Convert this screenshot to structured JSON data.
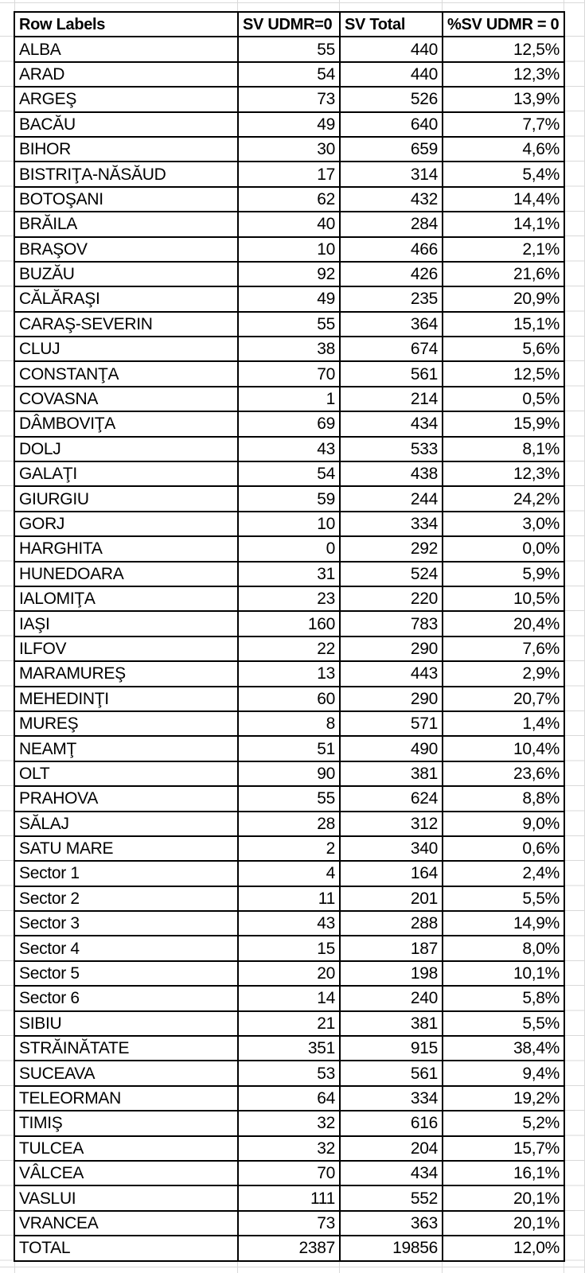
{
  "colors": {
    "background": "#ffffff",
    "table_border": "#000000",
    "sheet_gridline": "#d9d9d9",
    "text": "#000000"
  },
  "table": {
    "columns": [
      "Row Labels",
      "SV UDMR=0",
      "SV Total",
      "%SV UDMR = 0"
    ],
    "rows": [
      {
        "label": "ALBA",
        "sv_udmr_0": "55",
        "sv_total": "440",
        "pct_sv_udmr_0": "12,5%"
      },
      {
        "label": "ARAD",
        "sv_udmr_0": "54",
        "sv_total": "440",
        "pct_sv_udmr_0": "12,3%"
      },
      {
        "label": "ARGEŞ",
        "sv_udmr_0": "73",
        "sv_total": "526",
        "pct_sv_udmr_0": "13,9%"
      },
      {
        "label": "BACĂU",
        "sv_udmr_0": "49",
        "sv_total": "640",
        "pct_sv_udmr_0": "7,7%"
      },
      {
        "label": "BIHOR",
        "sv_udmr_0": "30",
        "sv_total": "659",
        "pct_sv_udmr_0": "4,6%"
      },
      {
        "label": "BISTRIŢA-NĂSĂUD",
        "sv_udmr_0": "17",
        "sv_total": "314",
        "pct_sv_udmr_0": "5,4%"
      },
      {
        "label": "BOTOŞANI",
        "sv_udmr_0": "62",
        "sv_total": "432",
        "pct_sv_udmr_0": "14,4%"
      },
      {
        "label": "BRĂILA",
        "sv_udmr_0": "40",
        "sv_total": "284",
        "pct_sv_udmr_0": "14,1%"
      },
      {
        "label": "BRAŞOV",
        "sv_udmr_0": "10",
        "sv_total": "466",
        "pct_sv_udmr_0": "2,1%"
      },
      {
        "label": "BUZĂU",
        "sv_udmr_0": "92",
        "sv_total": "426",
        "pct_sv_udmr_0": "21,6%"
      },
      {
        "label": "CĂLĂRAŞI",
        "sv_udmr_0": "49",
        "sv_total": "235",
        "pct_sv_udmr_0": "20,9%"
      },
      {
        "label": "CARAŞ-SEVERIN",
        "sv_udmr_0": "55",
        "sv_total": "364",
        "pct_sv_udmr_0": "15,1%"
      },
      {
        "label": "CLUJ",
        "sv_udmr_0": "38",
        "sv_total": "674",
        "pct_sv_udmr_0": "5,6%"
      },
      {
        "label": "CONSTANŢA",
        "sv_udmr_0": "70",
        "sv_total": "561",
        "pct_sv_udmr_0": "12,5%"
      },
      {
        "label": "COVASNA",
        "sv_udmr_0": "1",
        "sv_total": "214",
        "pct_sv_udmr_0": "0,5%"
      },
      {
        "label": "DÂMBOVIŢA",
        "sv_udmr_0": "69",
        "sv_total": "434",
        "pct_sv_udmr_0": "15,9%"
      },
      {
        "label": "DOLJ",
        "sv_udmr_0": "43",
        "sv_total": "533",
        "pct_sv_udmr_0": "8,1%"
      },
      {
        "label": "GALAŢI",
        "sv_udmr_0": "54",
        "sv_total": "438",
        "pct_sv_udmr_0": "12,3%"
      },
      {
        "label": "GIURGIU",
        "sv_udmr_0": "59",
        "sv_total": "244",
        "pct_sv_udmr_0": "24,2%"
      },
      {
        "label": "GORJ",
        "sv_udmr_0": "10",
        "sv_total": "334",
        "pct_sv_udmr_0": "3,0%"
      },
      {
        "label": "HARGHITA",
        "sv_udmr_0": "0",
        "sv_total": "292",
        "pct_sv_udmr_0": "0,0%"
      },
      {
        "label": "HUNEDOARA",
        "sv_udmr_0": "31",
        "sv_total": "524",
        "pct_sv_udmr_0": "5,9%"
      },
      {
        "label": "IALOMIŢA",
        "sv_udmr_0": "23",
        "sv_total": "220",
        "pct_sv_udmr_0": "10,5%"
      },
      {
        "label": "IAŞI",
        "sv_udmr_0": "160",
        "sv_total": "783",
        "pct_sv_udmr_0": "20,4%"
      },
      {
        "label": "ILFOV",
        "sv_udmr_0": "22",
        "sv_total": "290",
        "pct_sv_udmr_0": "7,6%"
      },
      {
        "label": "MARAMUREŞ",
        "sv_udmr_0": "13",
        "sv_total": "443",
        "pct_sv_udmr_0": "2,9%"
      },
      {
        "label": "MEHEDINŢI",
        "sv_udmr_0": "60",
        "sv_total": "290",
        "pct_sv_udmr_0": "20,7%"
      },
      {
        "label": "MUREŞ",
        "sv_udmr_0": "8",
        "sv_total": "571",
        "pct_sv_udmr_0": "1,4%"
      },
      {
        "label": "NEAMŢ",
        "sv_udmr_0": "51",
        "sv_total": "490",
        "pct_sv_udmr_0": "10,4%"
      },
      {
        "label": "OLT",
        "sv_udmr_0": "90",
        "sv_total": "381",
        "pct_sv_udmr_0": "23,6%"
      },
      {
        "label": "PRAHOVA",
        "sv_udmr_0": "55",
        "sv_total": "624",
        "pct_sv_udmr_0": "8,8%"
      },
      {
        "label": "SĂLAJ",
        "sv_udmr_0": "28",
        "sv_total": "312",
        "pct_sv_udmr_0": "9,0%"
      },
      {
        "label": "SATU MARE",
        "sv_udmr_0": "2",
        "sv_total": "340",
        "pct_sv_udmr_0": "0,6%"
      },
      {
        "label": "Sector 1",
        "sv_udmr_0": "4",
        "sv_total": "164",
        "pct_sv_udmr_0": "2,4%"
      },
      {
        "label": "Sector 2",
        "sv_udmr_0": "11",
        "sv_total": "201",
        "pct_sv_udmr_0": "5,5%"
      },
      {
        "label": "Sector 3",
        "sv_udmr_0": "43",
        "sv_total": "288",
        "pct_sv_udmr_0": "14,9%"
      },
      {
        "label": "Sector 4",
        "sv_udmr_0": "15",
        "sv_total": "187",
        "pct_sv_udmr_0": "8,0%"
      },
      {
        "label": "Sector 5",
        "sv_udmr_0": "20",
        "sv_total": "198",
        "pct_sv_udmr_0": "10,1%"
      },
      {
        "label": "Sector 6",
        "sv_udmr_0": "14",
        "sv_total": "240",
        "pct_sv_udmr_0": "5,8%"
      },
      {
        "label": "SIBIU",
        "sv_udmr_0": "21",
        "sv_total": "381",
        "pct_sv_udmr_0": "5,5%"
      },
      {
        "label": "STRĂINĂTATE",
        "sv_udmr_0": "351",
        "sv_total": "915",
        "pct_sv_udmr_0": "38,4%"
      },
      {
        "label": "SUCEAVA",
        "sv_udmr_0": "53",
        "sv_total": "561",
        "pct_sv_udmr_0": "9,4%"
      },
      {
        "label": "TELEORMAN",
        "sv_udmr_0": "64",
        "sv_total": "334",
        "pct_sv_udmr_0": "19,2%"
      },
      {
        "label": "TIMIŞ",
        "sv_udmr_0": "32",
        "sv_total": "616",
        "pct_sv_udmr_0": "5,2%"
      },
      {
        "label": "TULCEA",
        "sv_udmr_0": "32",
        "sv_total": "204",
        "pct_sv_udmr_0": "15,7%"
      },
      {
        "label": "VÂLCEA",
        "sv_udmr_0": "70",
        "sv_total": "434",
        "pct_sv_udmr_0": "16,1%"
      },
      {
        "label": "VASLUI",
        "sv_udmr_0": "111",
        "sv_total": "552",
        "pct_sv_udmr_0": "20,1%"
      },
      {
        "label": "VRANCEA",
        "sv_udmr_0": "73",
        "sv_total": "363",
        "pct_sv_udmr_0": "20,1%"
      },
      {
        "label": "TOTAL",
        "sv_udmr_0": "2387",
        "sv_total": "19856",
        "pct_sv_udmr_0": "12,0%"
      }
    ]
  }
}
